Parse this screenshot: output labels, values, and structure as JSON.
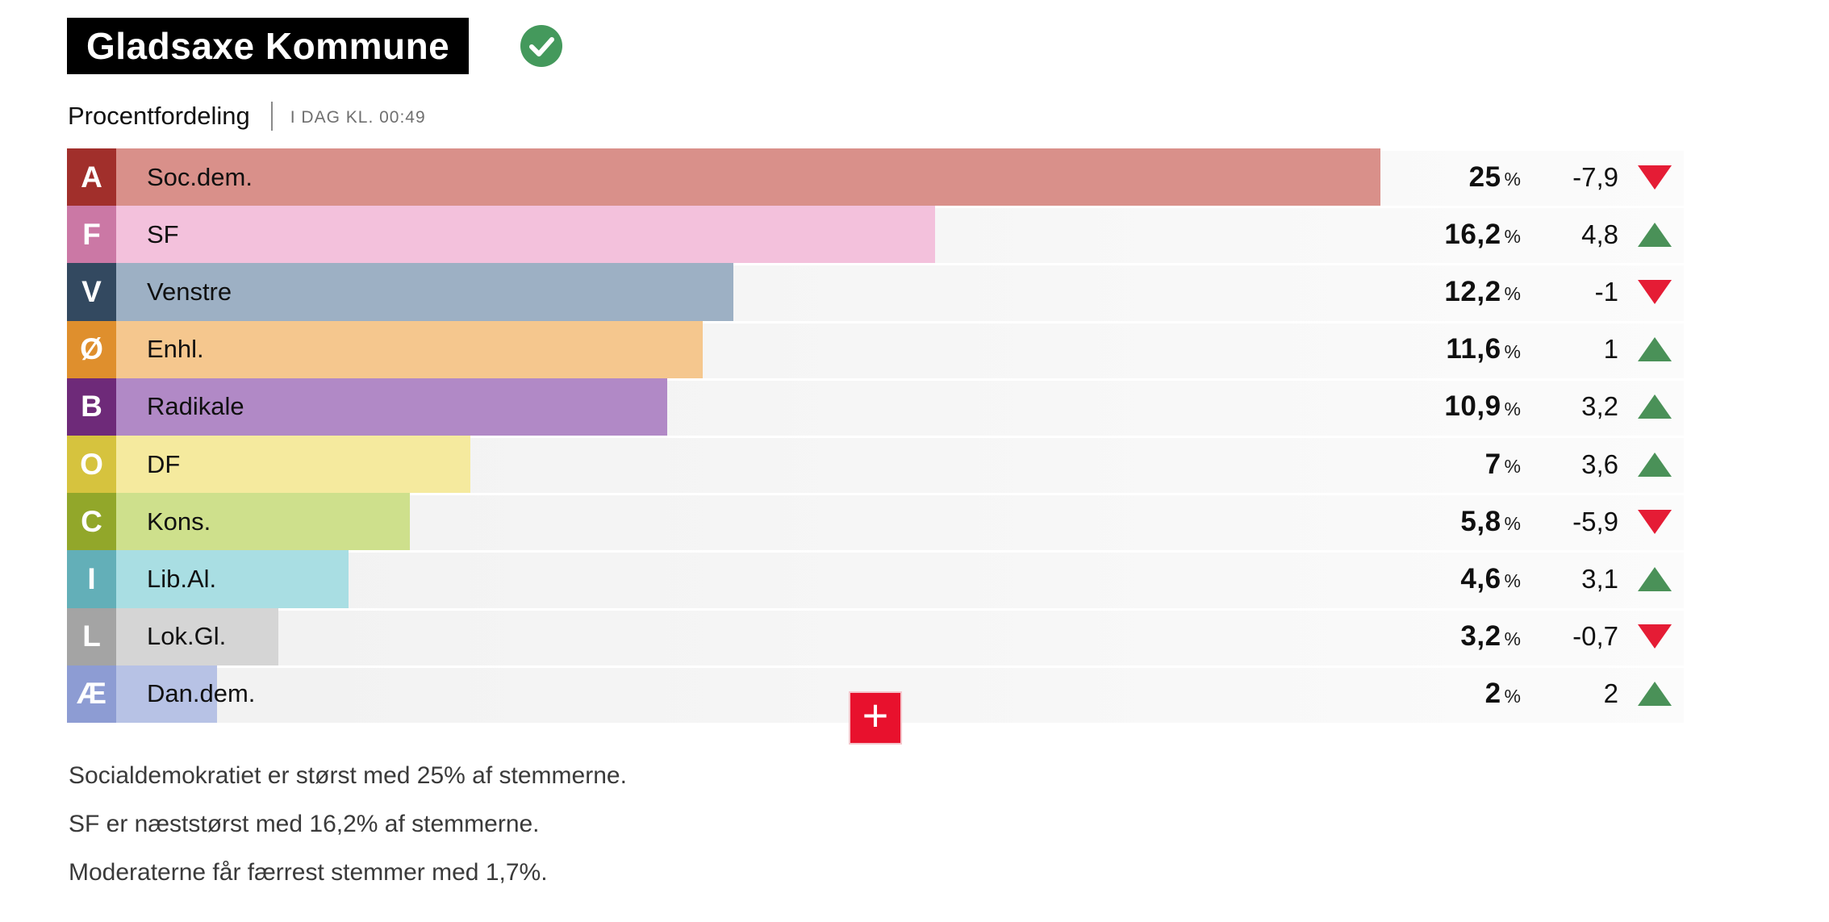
{
  "header": {
    "title": "Gladsaxe Kommune",
    "status_icon": "checkmark",
    "status_color": "#44995c"
  },
  "subtitle": {
    "label": "Procentfordeling",
    "timestamp": "I DAG KL. 00:49"
  },
  "chart_data": {
    "type": "bar",
    "title": "Procentfordeling",
    "orientation": "horizontal",
    "unit": "%",
    "xlim": [
      0,
      31
    ],
    "grid": false,
    "rows": [
      {
        "letter": "A",
        "party": "Soc.dem.",
        "pct_label": "25",
        "pct_value": 25.0,
        "change_label": "-7,9",
        "change_value": -7.9,
        "direction": "down",
        "badge_color": "#a12f2b",
        "bar_color": "#d9908a"
      },
      {
        "letter": "F",
        "party": "SF",
        "pct_label": "16,2",
        "pct_value": 16.2,
        "change_label": "4,8",
        "change_value": 4.8,
        "direction": "up",
        "badge_color": "#cb78a5",
        "bar_color": "#f3c1dc"
      },
      {
        "letter": "V",
        "party": "Venstre",
        "pct_label": "12,2",
        "pct_value": 12.2,
        "change_label": "-1",
        "change_value": -1.0,
        "direction": "down",
        "badge_color": "#334960",
        "bar_color": "#9db0c4"
      },
      {
        "letter": "Ø",
        "party": "Enhl.",
        "pct_label": "11,6",
        "pct_value": 11.6,
        "change_label": "1",
        "change_value": 1.0,
        "direction": "up",
        "badge_color": "#df8f2d",
        "bar_color": "#f5c78e"
      },
      {
        "letter": "B",
        "party": "Radikale",
        "pct_label": "10,9",
        "pct_value": 10.9,
        "change_label": "3,2",
        "change_value": 3.2,
        "direction": "up",
        "badge_color": "#6e2a79",
        "bar_color": "#b189c6"
      },
      {
        "letter": "O",
        "party": "DF",
        "pct_label": "7",
        "pct_value": 7.0,
        "change_label": "3,6",
        "change_value": 3.6,
        "direction": "up",
        "badge_color": "#d6c33e",
        "bar_color": "#f5ea9e"
      },
      {
        "letter": "C",
        "party": "Kons.",
        "pct_label": "5,8",
        "pct_value": 5.8,
        "change_label": "-5,9",
        "change_value": -5.9,
        "direction": "down",
        "badge_color": "#92a72a",
        "bar_color": "#cee08c"
      },
      {
        "letter": "I",
        "party": "Lib.Al.",
        "pct_label": "4,6",
        "pct_value": 4.6,
        "change_label": "3,1",
        "change_value": 3.1,
        "direction": "up",
        "badge_color": "#63afb8",
        "bar_color": "#a9dee3"
      },
      {
        "letter": "L",
        "party": "Lok.Gl.",
        "pct_label": "3,2",
        "pct_value": 3.2,
        "change_label": "-0,7",
        "change_value": -0.7,
        "direction": "down",
        "badge_color": "#a4a4a4",
        "bar_color": "#d5d5d5"
      },
      {
        "letter": "Æ",
        "party": "Dan.dem.",
        "pct_label": "2",
        "pct_value": 2.0,
        "change_label": "2",
        "change_value": 2.0,
        "direction": "up",
        "badge_color": "#8d9cd3",
        "bar_color": "#b7c2e5"
      }
    ]
  },
  "colors": {
    "up": "#4a9158",
    "down": "#e51c35",
    "plus_button": "#e8112d"
  },
  "plus_button": {
    "label": "+"
  },
  "summary": {
    "lines": [
      "Socialdemokratiet er størst med 25% af stemmerne.",
      "SF er næststørst med 16,2% af stemmerne.",
      "Moderaterne får færrest stemmer med 1,7%."
    ]
  }
}
